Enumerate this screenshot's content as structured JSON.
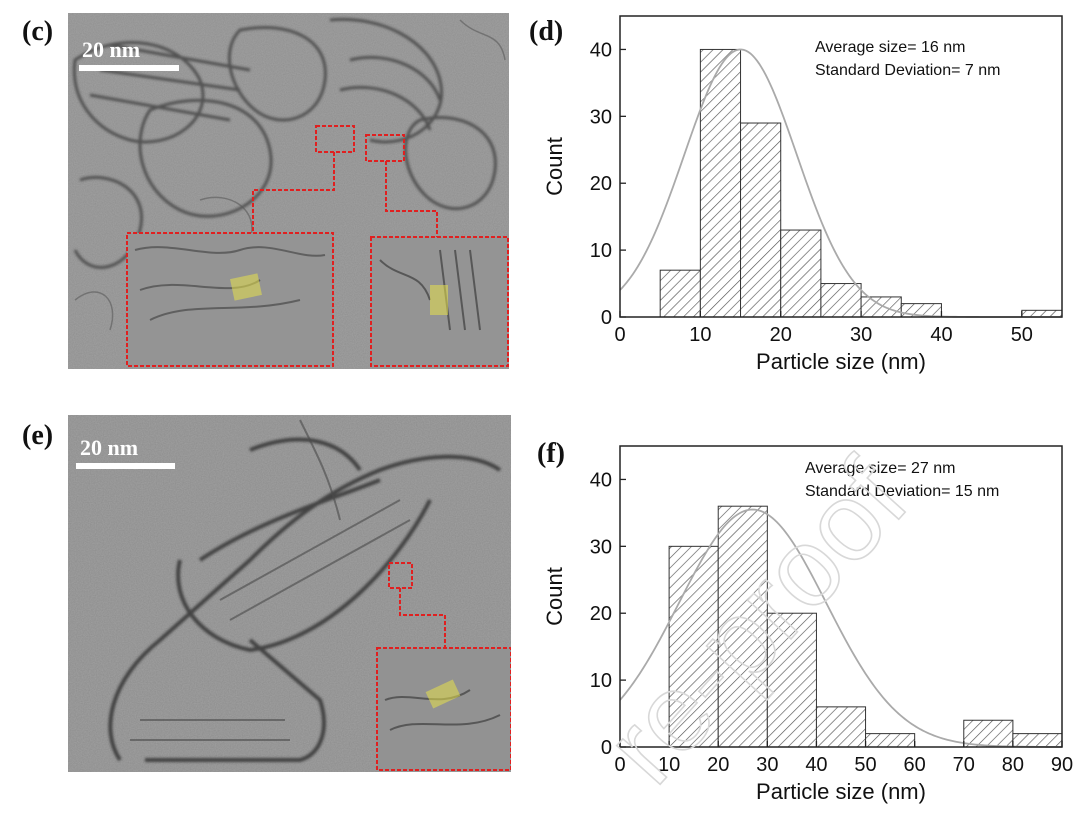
{
  "panels": {
    "c": {
      "letter": "(c)",
      "scale_label": "20 nm"
    },
    "d": {
      "letter": "(d)"
    },
    "e": {
      "letter": "(e)",
      "scale_label": "20 nm"
    },
    "f": {
      "letter": "(f)"
    }
  },
  "watermark": "re-proof",
  "colors": {
    "bar_fill": "#ffffff",
    "hatch": "#555555",
    "fit_curve": "#aaaaaa",
    "inset_border": "#e02020",
    "lattice_highlight": "#e6e04a"
  },
  "chart_data": [
    {
      "id": "d",
      "type": "bar",
      "subtype": "histogram",
      "xlabel": "Particle size (nm)",
      "ylabel": "Count",
      "xlim": [
        0,
        55
      ],
      "ylim": [
        0,
        45
      ],
      "xticks": [
        0,
        10,
        20,
        30,
        40,
        50
      ],
      "yticks": [
        0,
        10,
        20,
        30,
        40
      ],
      "bin_edges": [
        5,
        10,
        15,
        20,
        25,
        30,
        35,
        40,
        45,
        50,
        55
      ],
      "counts": [
        7,
        40,
        29,
        13,
        5,
        3,
        2,
        0,
        0,
        1
      ],
      "annotations": [
        "Average size= 16 nm",
        "Standard Deviation= 7 nm"
      ],
      "fit": {
        "type": "gaussian",
        "mean": 15,
        "sd": 7,
        "peak": 40
      }
    },
    {
      "id": "f",
      "type": "bar",
      "subtype": "histogram",
      "xlabel": "Particle size (nm)",
      "ylabel": "Count",
      "xlim": [
        0,
        90
      ],
      "ylim": [
        0,
        45
      ],
      "xticks": [
        0,
        10,
        20,
        30,
        40,
        50,
        60,
        70,
        80,
        90
      ],
      "yticks": [
        0,
        10,
        20,
        30,
        40
      ],
      "bin_edges": [
        10,
        20,
        30,
        40,
        50,
        60,
        70,
        80,
        90
      ],
      "counts": [
        30,
        36,
        20,
        6,
        2,
        0,
        4,
        2
      ],
      "annotations": [
        "Average size= 27 nm",
        "Standard Deviation= 15 nm"
      ],
      "fit": {
        "type": "gaussian",
        "mean": 27,
        "sd": 15,
        "peak": 35.5
      }
    }
  ]
}
